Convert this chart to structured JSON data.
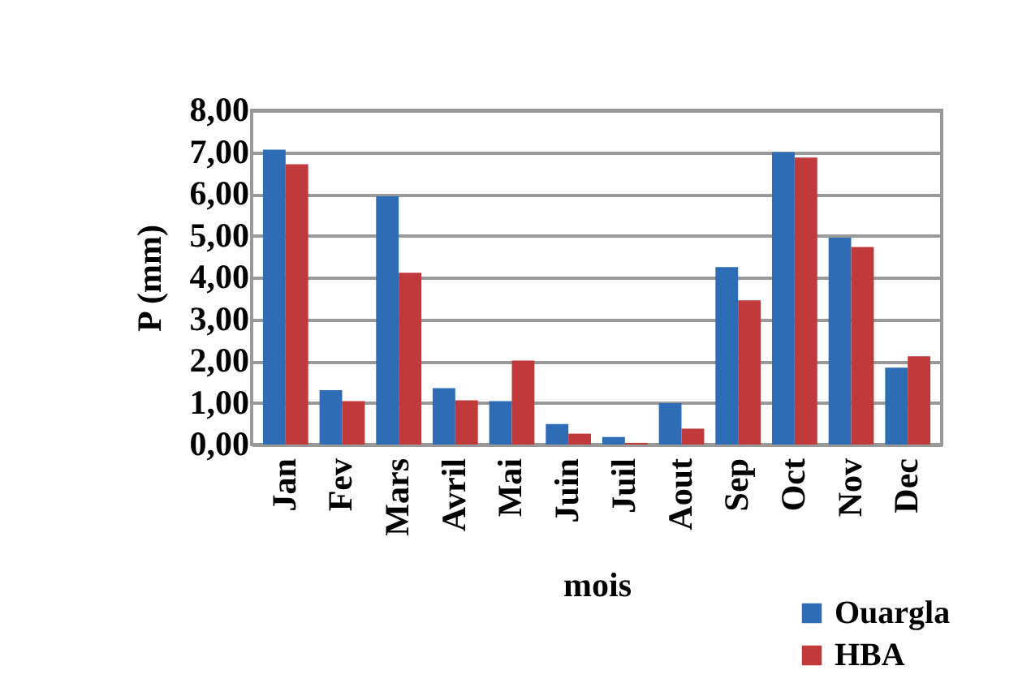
{
  "chart_data": {
    "type": "bar",
    "xlabel": "mois",
    "ylabel": "P  (mm)",
    "categories": [
      "Jan",
      "Fev",
      "Mars",
      "Avril",
      "Mai",
      "Juin",
      "Juil",
      "Aout",
      "Sep",
      "Oct",
      "Nov",
      "Dec"
    ],
    "series": [
      {
        "name": "Ouargla",
        "color": "#2e6db5",
        "values": [
          7.06,
          1.3,
          5.94,
          1.35,
          1.04,
          0.49,
          0.18,
          0.99,
          4.25,
          7.0,
          4.95,
          1.84
        ]
      },
      {
        "name": "HBA",
        "color": "#c0393b",
        "values": [
          6.71,
          1.04,
          4.11,
          1.06,
          2.01,
          0.26,
          0.04,
          0.38,
          3.45,
          6.87,
          4.73,
          2.11
        ]
      }
    ],
    "ylim": [
      0,
      8
    ],
    "yticks": [
      {
        "value": 0,
        "label": "0,00"
      },
      {
        "value": 1,
        "label": "1,00"
      },
      {
        "value": 2,
        "label": "2,00"
      },
      {
        "value": 3,
        "label": "3,00"
      },
      {
        "value": 4,
        "label": "4,00"
      },
      {
        "value": 5,
        "label": "5,00"
      },
      {
        "value": 6,
        "label": "6,00"
      },
      {
        "value": 7,
        "label": "7,00"
      },
      {
        "value": 8,
        "label": "8,00"
      }
    ],
    "grid": "y",
    "legend": "bottom right"
  }
}
